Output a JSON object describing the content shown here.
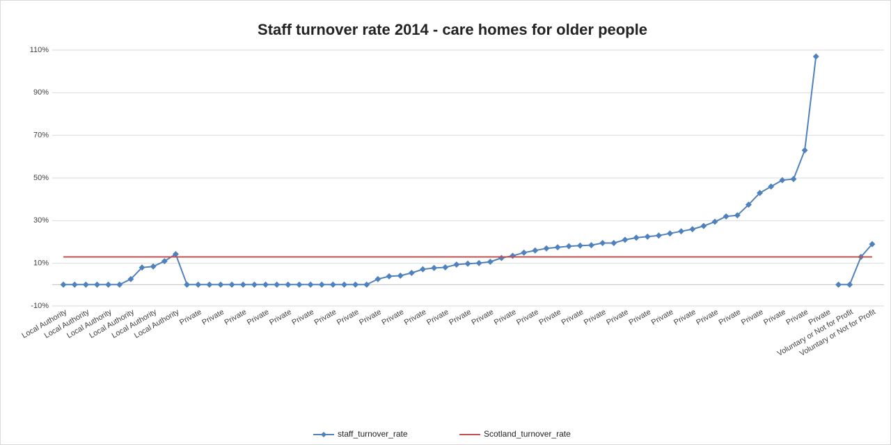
{
  "chart_data": {
    "type": "line",
    "title": "Staff turnover rate 2014 - care homes for older people",
    "categories": [
      "Local Authority",
      null,
      "Local Authority",
      null,
      "Local Authority",
      null,
      "Local Authority",
      null,
      "Local Authority",
      null,
      "Local Authority",
      null,
      "Private",
      null,
      "Private",
      null,
      "Private",
      null,
      "Private",
      null,
      "Private",
      null,
      "Private",
      null,
      "Private",
      null,
      "Private",
      null,
      "Private",
      null,
      "Private",
      null,
      "Private",
      null,
      "Private",
      null,
      "Private",
      null,
      "Private",
      null,
      "Private",
      null,
      "Private",
      null,
      "Private",
      null,
      "Private",
      null,
      "Private",
      null,
      "Private",
      null,
      "Private",
      null,
      "Private",
      null,
      "Private",
      null,
      "Private",
      null,
      "Private",
      null,
      "Private",
      null,
      "Private",
      null,
      "Private",
      null,
      "Private",
      null,
      "Voluntary or Not for Profit",
      null,
      "Voluntary or Not for Profit"
    ],
    "series": [
      {
        "name": "staff_turnover_rate",
        "color": "#4f81bd",
        "values": [
          0,
          0,
          0,
          0,
          0,
          0,
          2.6,
          8,
          8.5,
          11,
          14.3,
          0,
          0,
          0,
          0,
          0,
          0,
          0,
          0,
          0,
          0,
          0,
          0,
          0,
          0,
          0,
          0,
          0,
          2.6,
          3.9,
          4.2,
          5.5,
          7.2,
          7.8,
          8.1,
          9.4,
          9.8,
          10.1,
          10.7,
          12.5,
          13.5,
          15,
          16,
          17,
          17.5,
          18,
          18.3,
          18.5,
          19.5,
          19.5,
          21,
          22,
          22.5,
          23,
          24,
          25,
          26,
          27.5,
          29.5,
          32,
          32.5,
          37.5,
          43,
          46,
          49,
          49.5,
          63,
          107,
          null,
          0,
          0,
          13,
          19
        ]
      },
      {
        "name": "Scotland_turnover_rate",
        "color": "#c0504d",
        "values": [
          13,
          13,
          13,
          13,
          13,
          13,
          13,
          13,
          13,
          13,
          13,
          13,
          13,
          13,
          13,
          13,
          13,
          13,
          13,
          13,
          13,
          13,
          13,
          13,
          13,
          13,
          13,
          13,
          13,
          13,
          13,
          13,
          13,
          13,
          13,
          13,
          13,
          13,
          13,
          13,
          13,
          13,
          13,
          13,
          13,
          13,
          13,
          13,
          13,
          13,
          13,
          13,
          13,
          13,
          13,
          13,
          13,
          13,
          13,
          13,
          13,
          13,
          13,
          13,
          13,
          13,
          13,
          13,
          13,
          13,
          13,
          13,
          13
        ]
      }
    ],
    "ylim": [
      -10,
      110
    ],
    "yticks": [
      {
        "value": -10,
        "label": "-10%"
      },
      {
        "value": 10,
        "label": "10%"
      },
      {
        "value": 30,
        "label": "30%"
      },
      {
        "value": 50,
        "label": "50%"
      },
      {
        "value": 70,
        "label": "70%"
      },
      {
        "value": 90,
        "label": "90%"
      },
      {
        "value": 110,
        "label": "110%"
      }
    ],
    "grid": true,
    "legend": "bottom"
  }
}
